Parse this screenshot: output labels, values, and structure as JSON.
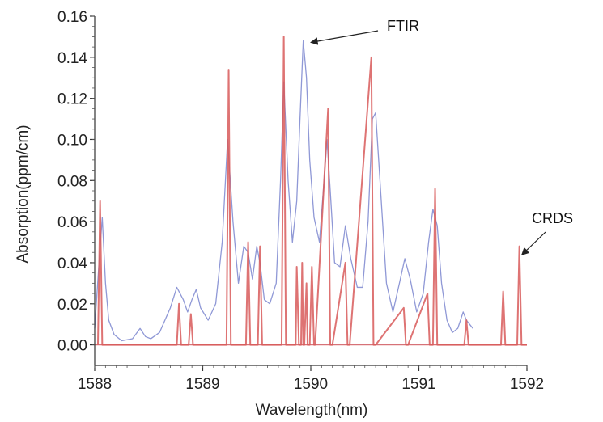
{
  "chart_data": {
    "type": "line",
    "title": "",
    "xlabel": "Wavelength(nm)",
    "ylabel": "Absorption(ppm/cm)",
    "xlim": [
      1588,
      1592
    ],
    "ylim": [
      -0.01,
      0.16
    ],
    "x_ticks": [
      "1588",
      "1589",
      "1590",
      "1591",
      "1592"
    ],
    "y_ticks": [
      "0.00",
      "0.02",
      "0.04",
      "0.06",
      "0.08",
      "0.10",
      "0.12",
      "0.14",
      "0.16"
    ],
    "grid": false,
    "legend": "none",
    "series": [
      {
        "color": "#8f98d6",
        "x": [
          1588.0,
          1588.04,
          1588.07,
          1588.1,
          1588.13,
          1588.18,
          1588.25,
          1588.35,
          1588.42,
          1588.47,
          1588.52,
          1588.6,
          1588.7,
          1588.76,
          1588.82,
          1588.86,
          1588.9,
          1588.94,
          1588.98,
          1589.05,
          1589.12,
          1589.18,
          1589.23,
          1589.28,
          1589.33,
          1589.38,
          1589.42,
          1589.46,
          1589.5,
          1589.53,
          1589.57,
          1589.62,
          1589.68,
          1589.72,
          1589.75,
          1589.79,
          1589.83,
          1589.87,
          1589.9,
          1589.93,
          1589.96,
          1589.99,
          1590.03,
          1590.08,
          1590.12,
          1590.15,
          1590.18,
          1590.22,
          1590.27,
          1590.32,
          1590.37,
          1590.43,
          1590.48,
          1590.53,
          1590.57,
          1590.6,
          1590.64,
          1590.7,
          1590.76,
          1590.82,
          1590.87,
          1590.92,
          1590.98,
          1591.04,
          1591.09,
          1591.13,
          1591.17,
          1591.21,
          1591.26,
          1591.31,
          1591.36,
          1591.41,
          1591.44,
          1591.47,
          1591.5
        ],
        "y": [
          0.008,
          0.04,
          0.062,
          0.03,
          0.012,
          0.005,
          0.002,
          0.003,
          0.008,
          0.004,
          0.003,
          0.006,
          0.018,
          0.028,
          0.022,
          0.016,
          0.022,
          0.027,
          0.018,
          0.012,
          0.02,
          0.05,
          0.1,
          0.06,
          0.03,
          0.048,
          0.045,
          0.032,
          0.048,
          0.04,
          0.022,
          0.02,
          0.03,
          0.08,
          0.128,
          0.08,
          0.05,
          0.07,
          0.11,
          0.148,
          0.13,
          0.09,
          0.062,
          0.05,
          0.078,
          0.1,
          0.075,
          0.04,
          0.038,
          0.058,
          0.042,
          0.028,
          0.028,
          0.06,
          0.11,
          0.113,
          0.08,
          0.03,
          0.016,
          0.03,
          0.042,
          0.032,
          0.016,
          0.025,
          0.05,
          0.066,
          0.058,
          0.03,
          0.012,
          0.006,
          0.008,
          0.016,
          0.012,
          0.01,
          0.008
        ]
      },
      {
        "name": "CRDS",
        "color": "#d85a5a",
        "x": [
          1588.03,
          1588.05,
          1588.07,
          1588.09,
          1588.11,
          1588.76,
          1588.78,
          1588.8,
          1588.87,
          1588.89,
          1588.91,
          1589.22,
          1589.24,
          1589.26,
          1589.4,
          1589.42,
          1589.44,
          1589.51,
          1589.53,
          1589.55,
          1589.73,
          1589.75,
          1589.77,
          1589.86,
          1589.87,
          1589.89,
          1589.91,
          1589.92,
          1589.93,
          1589.94,
          1589.96,
          1589.97,
          1589.99,
          1590.01,
          1590.03,
          1590.04,
          1590.16,
          1590.18,
          1590.2,
          1590.32,
          1590.34,
          1590.36,
          1590.56,
          1590.58,
          1590.6,
          1590.86,
          1590.88,
          1590.9,
          1591.08,
          1591.1,
          1591.12,
          1591.13,
          1591.15,
          1591.17,
          1591.42,
          1591.44,
          1591.46,
          1591.76,
          1591.78,
          1591.8,
          1591.91,
          1591.93,
          1591.95,
          1592.0
        ],
        "y": [
          0.0,
          0.07,
          0.0,
          0.0,
          0.0,
          0.0,
          0.02,
          0.0,
          0.0,
          0.015,
          0.0,
          0.0,
          0.134,
          0.0,
          0.0,
          0.05,
          0.0,
          0.0,
          0.048,
          0.0,
          0.0,
          0.15,
          0.0,
          0.0,
          0.038,
          0.0,
          0.0,
          0.04,
          0.0,
          0.0,
          0.03,
          0.0,
          0.0,
          0.038,
          0.0,
          0.0,
          0.115,
          0.0,
          0.0,
          0.04,
          0.0,
          0.0,
          0.14,
          0.0,
          0.0,
          0.018,
          0.0,
          0.0,
          0.025,
          0.0,
          0.0,
          0.0,
          0.076,
          0.0,
          0.0,
          0.012,
          0.0,
          0.0,
          0.026,
          0.0,
          0.0,
          0.048,
          0.0,
          0.0
        ]
      }
    ],
    "annotations": [
      {
        "text": "FTIR",
        "target_x": 1589.97,
        "target_y": 0.148
      },
      {
        "text": "CRDS",
        "target_x": 1591.93,
        "target_y": 0.043
      }
    ]
  }
}
